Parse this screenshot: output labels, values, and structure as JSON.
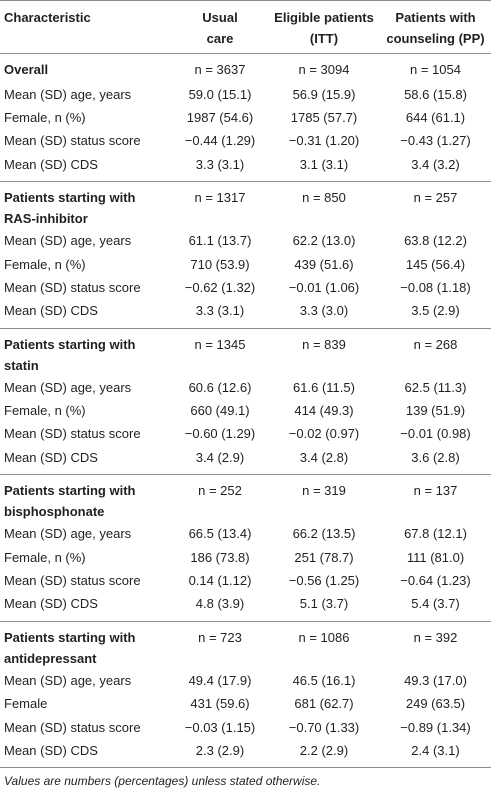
{
  "table": {
    "columns": [
      "Characteristic",
      "Usual care",
      "Eligible patients (ITT)",
      "Patients with counseling (PP)"
    ],
    "groups": [
      {
        "title": "Overall",
        "n": [
          "n = 3637",
          "n = 3094",
          "n = 1054"
        ],
        "rows": [
          {
            "label": "Mean (SD) age, years",
            "values": [
              "59.0 (15.1)",
              "56.9 (15.9)",
              "58.6 (15.8)"
            ]
          },
          {
            "label": "Female, n (%)",
            "values": [
              "1987 (54.6)",
              "1785 (57.7)",
              "644 (61.1)"
            ]
          },
          {
            "label": "Mean (SD) status score",
            "values": [
              "−0.44 (1.29)",
              "−0.31 (1.20)",
              "−0.43 (1.27)"
            ]
          },
          {
            "label": "Mean (SD) CDS",
            "values": [
              "3.3 (3.1)",
              "3.1 (3.1)",
              "3.4 (3.2)"
            ]
          }
        ]
      },
      {
        "title": "Patients starting with RAS-inhibitor",
        "n": [
          "n = 1317",
          "n = 850",
          "n = 257"
        ],
        "rows": [
          {
            "label": "Mean (SD) age, years",
            "values": [
              "61.1 (13.7)",
              "62.2 (13.0)",
              "63.8 (12.2)"
            ]
          },
          {
            "label": "Female, n (%)",
            "values": [
              "710 (53.9)",
              "439 (51.6)",
              "145 (56.4)"
            ]
          },
          {
            "label": "Mean (SD) status score",
            "values": [
              "−0.62 (1.32)",
              "−0.01 (1.06)",
              "−0.08 (1.18)"
            ]
          },
          {
            "label": "Mean (SD) CDS",
            "values": [
              "3.3 (3.1)",
              "3.3 (3.0)",
              "3.5 (2.9)"
            ]
          }
        ]
      },
      {
        "title": "Patients starting with statin",
        "n": [
          "n = 1345",
          "n = 839",
          "n = 268"
        ],
        "rows": [
          {
            "label": "Mean (SD) age, years",
            "values": [
              "60.6 (12.6)",
              "61.6 (11.5)",
              "62.5 (11.3)"
            ]
          },
          {
            "label": "Female, n (%)",
            "values": [
              "660 (49.1)",
              "414 (49.3)",
              "139 (51.9)"
            ]
          },
          {
            "label": "Mean (SD) status score",
            "values": [
              "−0.60 (1.29)",
              "−0.02 (0.97)",
              "−0.01 (0.98)"
            ]
          },
          {
            "label": "Mean (SD) CDS",
            "values": [
              "3.4 (2.9)",
              "3.4 (2.8)",
              "3.6 (2.8)"
            ]
          }
        ]
      },
      {
        "title": "Patients starting with bisphosphonate",
        "n": [
          "n = 252",
          "n = 319",
          "n = 137"
        ],
        "rows": [
          {
            "label": "Mean (SD) age, years",
            "values": [
              "66.5 (13.4)",
              "66.2 (13.5)",
              "67.8 (12.1)"
            ]
          },
          {
            "label": "Female, n (%)",
            "values": [
              "186 (73.8)",
              "251 (78.7)",
              "111 (81.0)"
            ]
          },
          {
            "label": "Mean (SD) status score",
            "values": [
              "0.14 (1.12)",
              "−0.56 (1.25)",
              "−0.64 (1.23)"
            ]
          },
          {
            "label": "Mean (SD) CDS",
            "values": [
              "4.8 (3.9)",
              "5.1 (3.7)",
              "5.4 (3.7)"
            ]
          }
        ]
      },
      {
        "title": "Patients starting with antidepressant",
        "n": [
          "n = 723",
          "n = 1086",
          "n = 392"
        ],
        "rows": [
          {
            "label": "Mean (SD) age, years",
            "values": [
              "49.4 (17.9)",
              "46.5 (16.1)",
              "49.3 (17.0)"
            ]
          },
          {
            "label": "Female",
            "values": [
              "431 (59.6)",
              "681 (62.7)",
              "249 (63.5)"
            ]
          },
          {
            "label": "Mean (SD) status score",
            "values": [
              "−0.03 (1.15)",
              "−0.70 (1.33)",
              "−0.89 (1.34)"
            ]
          },
          {
            "label": "Mean (SD) CDS",
            "values": [
              "2.3 (2.9)",
              "2.2 (2.9)",
              "2.4 (3.1)"
            ]
          }
        ]
      }
    ]
  },
  "footnote": "Values are numbers (percentages) unless stated otherwise."
}
